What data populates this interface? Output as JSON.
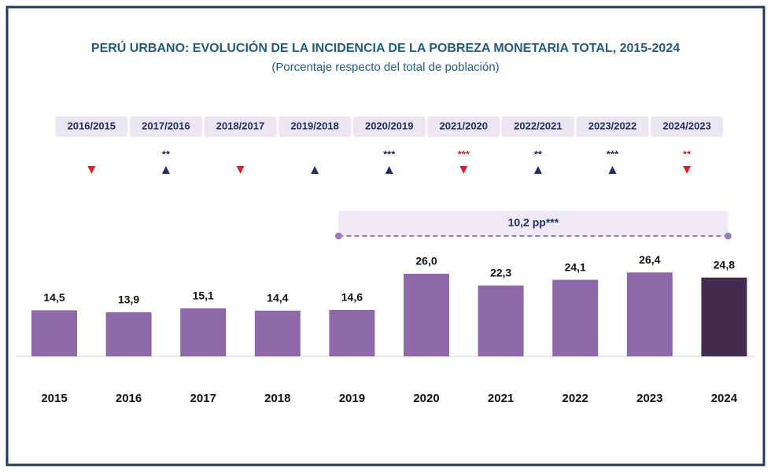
{
  "chart_data": {
    "type": "bar",
    "title": "PERÚ URBANO: EVOLUCIÓN DE LA INCIDENCIA DE LA POBREZA MONETARIA TOTAL, 2015-2024",
    "subtitle": "(Porcentaje respecto del total de población)",
    "categories": [
      "2015",
      "2016",
      "2017",
      "2018",
      "2019",
      "2020",
      "2021",
      "2022",
      "2023",
      "2024"
    ],
    "values": [
      14.5,
      13.9,
      15.1,
      14.4,
      14.6,
      26.0,
      22.3,
      24.1,
      26.4,
      24.8
    ],
    "value_labels": [
      "14,5",
      "13,9",
      "15,1",
      "14,4",
      "14,6",
      "26,0",
      "22,3",
      "24,1",
      "26,4",
      "24,8"
    ],
    "colors": [
      "#8e69aa",
      "#8e69aa",
      "#8e69aa",
      "#8e69aa",
      "#8e69aa",
      "#8e69aa",
      "#8e69aa",
      "#8e69aa",
      "#8e69aa",
      "#432c4d"
    ],
    "comparisons": [
      {
        "label": "2016/2015",
        "direction": "down"
      },
      {
        "label": "2017/2016",
        "direction": "up",
        "stars": "**",
        "stars_color": "#1f2f6b"
      },
      {
        "label": "2018/2017",
        "direction": "down"
      },
      {
        "label": "2019/2018",
        "direction": "up"
      },
      {
        "label": "2020/2019",
        "direction": "up",
        "stars": "***",
        "stars_color": "#1f2f6b"
      },
      {
        "label": "2021/2020",
        "direction": "down",
        "stars": "***",
        "stars_color": "#e31b23"
      },
      {
        "label": "2022/2021",
        "direction": "up",
        "stars": "**",
        "stars_color": "#1f2f6b"
      },
      {
        "label": "2023/2022",
        "direction": "up",
        "stars": "***",
        "stars_color": "#1f2f6b"
      },
      {
        "label": "2024/2023",
        "direction": "down",
        "stars": "**",
        "stars_color": "#e31b23"
      }
    ],
    "annotation": {
      "text": "10,2 pp***",
      "span": [
        "2019",
        "2024"
      ]
    }
  }
}
